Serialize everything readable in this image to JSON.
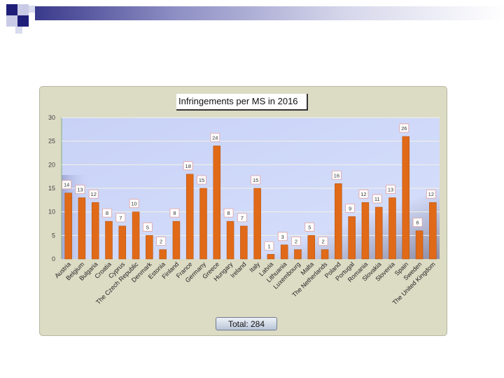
{
  "chart_data": {
    "type": "bar",
    "title": "Infringements per MS in 2016",
    "categories": [
      "Austria",
      "Belgium",
      "Bulgaria",
      "Croatia",
      "Cyprus",
      "The Czech Republic",
      "Denmark",
      "Estonia",
      "Finland",
      "France",
      "Germany",
      "Greece",
      "Hungary",
      "Ireland",
      "Italy",
      "Latvia",
      "Lithuania",
      "Luxembourg",
      "Malta",
      "The Netherlands",
      "Poland",
      "Portugal",
      "Romania",
      "Slovakia",
      "Slovenia",
      "Spain",
      "Sweden",
      "The United Kingdom"
    ],
    "values": [
      14,
      13,
      12,
      8,
      7,
      10,
      5,
      2,
      8,
      18,
      15,
      24,
      8,
      7,
      15,
      1,
      3,
      2,
      5,
      2,
      16,
      9,
      12,
      11,
      13,
      26,
      6,
      12
    ],
    "ylim": [
      0,
      30
    ],
    "yticks": [
      0,
      5,
      10,
      15,
      20,
      25,
      30
    ],
    "xlabel": "",
    "ylabel": "",
    "grid": true,
    "bar_color": "#e06a18",
    "total_label": "Total: 284"
  }
}
